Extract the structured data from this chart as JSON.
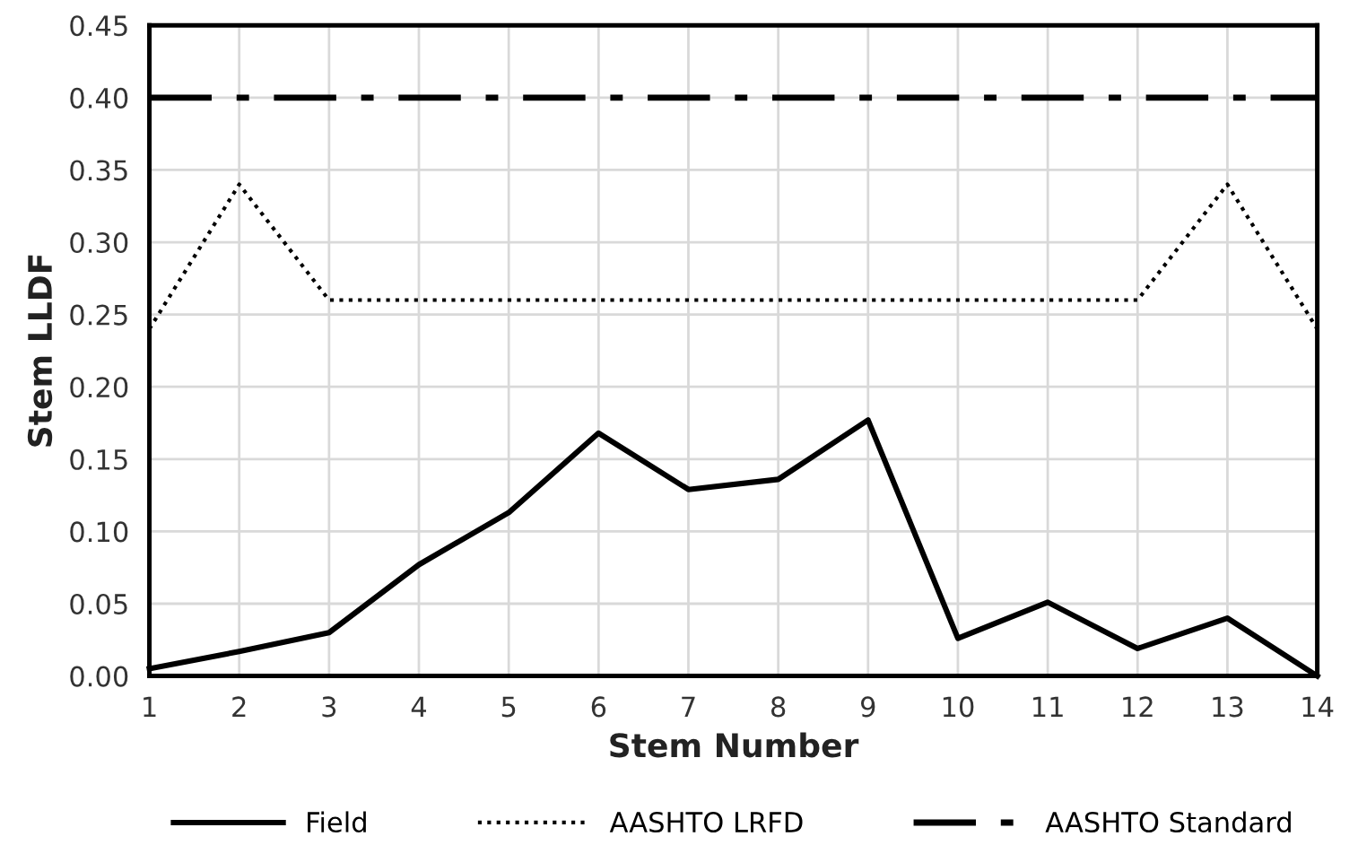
{
  "chart_data": {
    "type": "line",
    "xlabel": "Stem Number",
    "ylabel": "Stem LLDF",
    "x": [
      1,
      2,
      3,
      4,
      5,
      6,
      7,
      8,
      9,
      10,
      11,
      12,
      13,
      14
    ],
    "xlim": [
      1,
      14
    ],
    "xticks": [
      1,
      2,
      3,
      4,
      5,
      6,
      7,
      8,
      9,
      10,
      11,
      12,
      13,
      14
    ],
    "ylim": [
      0,
      0.45
    ],
    "yticks": [
      {
        "value": 0,
        "label": "0.00"
      },
      {
        "value": 0.05,
        "label": "0.05"
      },
      {
        "value": 0.1,
        "label": "0.10"
      },
      {
        "value": 0.15,
        "label": "0.15"
      },
      {
        "value": 0.2,
        "label": "0.20"
      },
      {
        "value": 0.25,
        "label": "0.25"
      },
      {
        "value": 0.3,
        "label": "0.30"
      },
      {
        "value": 0.35,
        "label": "0.35"
      },
      {
        "value": 0.4,
        "label": "0.40"
      },
      {
        "value": 0.45,
        "label": "0.45"
      }
    ],
    "grid": true,
    "legend": "bottom",
    "marker": "none",
    "series": [
      {
        "name": "Field",
        "color": "#000000",
        "line_style": "solid",
        "values": [
          0.005,
          0.017,
          0.03,
          0.077,
          0.113,
          0.168,
          0.129,
          0.136,
          0.177,
          0.026,
          0.051,
          0.019,
          0.04,
          0.0
        ]
      },
      {
        "name": "AASHTO LRFD",
        "color": "#000000",
        "line_style": "dotted",
        "values": [
          0.24,
          0.34,
          0.26,
          0.26,
          0.26,
          0.26,
          0.26,
          0.26,
          0.26,
          0.26,
          0.26,
          0.26,
          0.34,
          0.24
        ]
      },
      {
        "name": "AASHTO Standard",
        "color": "#000000",
        "line_style": "dashdot",
        "values": [
          0.4,
          0.4,
          0.4,
          0.4,
          0.4,
          0.4,
          0.4,
          0.4,
          0.4,
          0.4,
          0.4,
          0.4,
          0.4,
          0.4
        ]
      }
    ]
  }
}
